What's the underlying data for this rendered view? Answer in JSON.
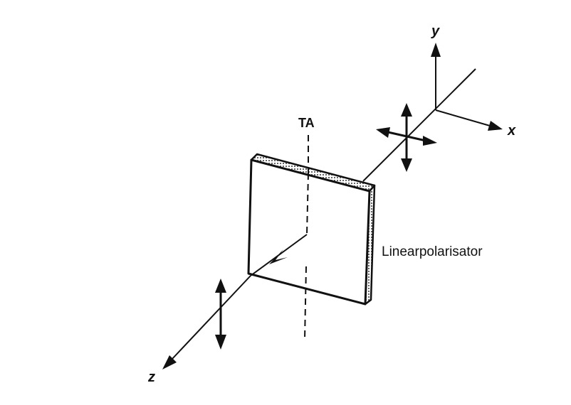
{
  "labels": {
    "axis_x": "x",
    "axis_y": "y",
    "axis_z": "z",
    "transmission_axis": "TA",
    "polarizer": "Linearpolarisator"
  },
  "colors": {
    "ink": "#111111",
    "background": "#ffffff",
    "edge_fill": "#d9d9d9"
  }
}
